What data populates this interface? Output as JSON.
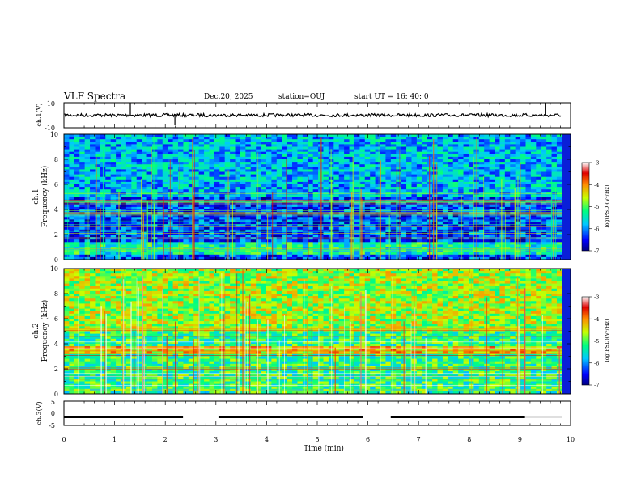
{
  "header": {
    "title": "VLF Spectra",
    "date": "Dec.20, 2025",
    "station": "station=OUJ",
    "start_ut": "start UT =  16: 40: 0"
  },
  "chart_data": [
    {
      "type": "line",
      "title": "",
      "ylabel": "ch.1(V)",
      "ylim": [
        -10,
        10
      ],
      "yticks": [
        "10",
        "-10"
      ],
      "x_range_min": [
        0,
        9.83
      ],
      "baseline": 0,
      "spikes": [
        {
          "x": 1.31,
          "y": 10
        },
        {
          "x": 2.19,
          "y": -8
        },
        {
          "x": 9.51,
          "y": 10
        }
      ]
    },
    {
      "type": "heatmap",
      "ylabel": "ch.1\nFrequency (kHz)",
      "ylim": [
        0,
        10
      ],
      "yticks": [
        "0",
        "2",
        "4",
        "6",
        "8",
        "10"
      ],
      "colorbar": {
        "label": "log(PSD)(V²/Hz)",
        "range": [
          -7,
          -3
        ],
        "ticks": [
          "-3",
          "-4",
          "-5",
          "-6",
          "-7"
        ]
      },
      "band_kHz": [
        0.5,
        1.5
      ],
      "background_level": -6.3
    },
    {
      "type": "heatmap",
      "ylabel": "ch.2\nFrequency (kHz)",
      "ylim": [
        0,
        10
      ],
      "yticks": [
        "0",
        "2",
        "4",
        "6",
        "8",
        "10"
      ],
      "colorbar": {
        "label": "log(PSD)(V²/Hz)",
        "range": [
          -7,
          -3
        ],
        "ticks": [
          "-3",
          "-4",
          "-5",
          "-6",
          "-7"
        ]
      },
      "band_kHz": [
        3.2,
        3.8
      ],
      "background_level": -5.2
    },
    {
      "type": "line",
      "ylabel": "ch.3(V)",
      "ylim": [
        -5,
        5
      ],
      "yticks": [
        "5",
        "0",
        "-5"
      ],
      "level": -1.5,
      "segments_min": [
        [
          0,
          2.35
        ],
        [
          3.05,
          5.9
        ],
        [
          6.45,
          9.1
        ],
        [
          9.1,
          9.83
        ]
      ],
      "xlabel": "Time (min)",
      "xlim": [
        0,
        10
      ],
      "xticks": [
        "0",
        "1",
        "2",
        "3",
        "4",
        "5",
        "6",
        "7",
        "8",
        "9",
        "10"
      ]
    }
  ]
}
